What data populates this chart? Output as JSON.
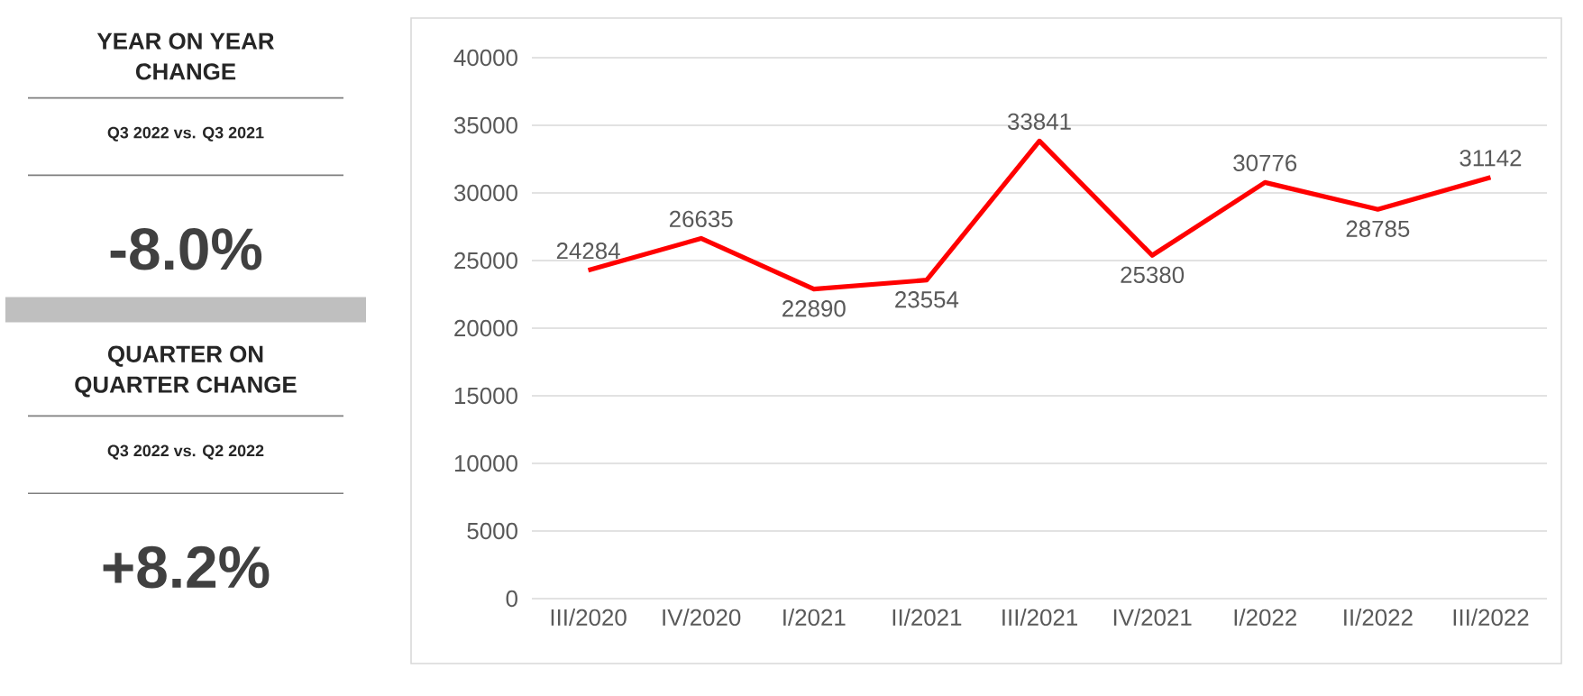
{
  "chart_data": [
    {
      "type": "other",
      "annotations": [
        "YEAR ON YEAR CHANGE",
        "Q3 2022 vs. Q3 2021",
        "-8.0%",
        "QUARTER ON QUARTER CHANGE",
        "Q3 2022 vs. Q2 2022",
        "+8.2%"
      ]
    },
    {
      "type": "line",
      "categories": [
        "III/2020",
        "IV/2020",
        "I/2021",
        "II/2021",
        "III/2021",
        "IV/2021",
        "I/2022",
        "II/2022",
        "III/2022"
      ],
      "values": [
        24284,
        26635,
        22890,
        23554,
        33841,
        25380,
        30776,
        28785,
        31142
      ],
      "color": "#ff0000",
      "ylim": [
        0,
        40000
      ],
      "yticks": [
        0,
        5000,
        10000,
        15000,
        20000,
        25000,
        30000,
        35000,
        40000
      ],
      "grid": "y",
      "data_labels": true,
      "marker": "none",
      "line_style": "solid"
    }
  ]
}
